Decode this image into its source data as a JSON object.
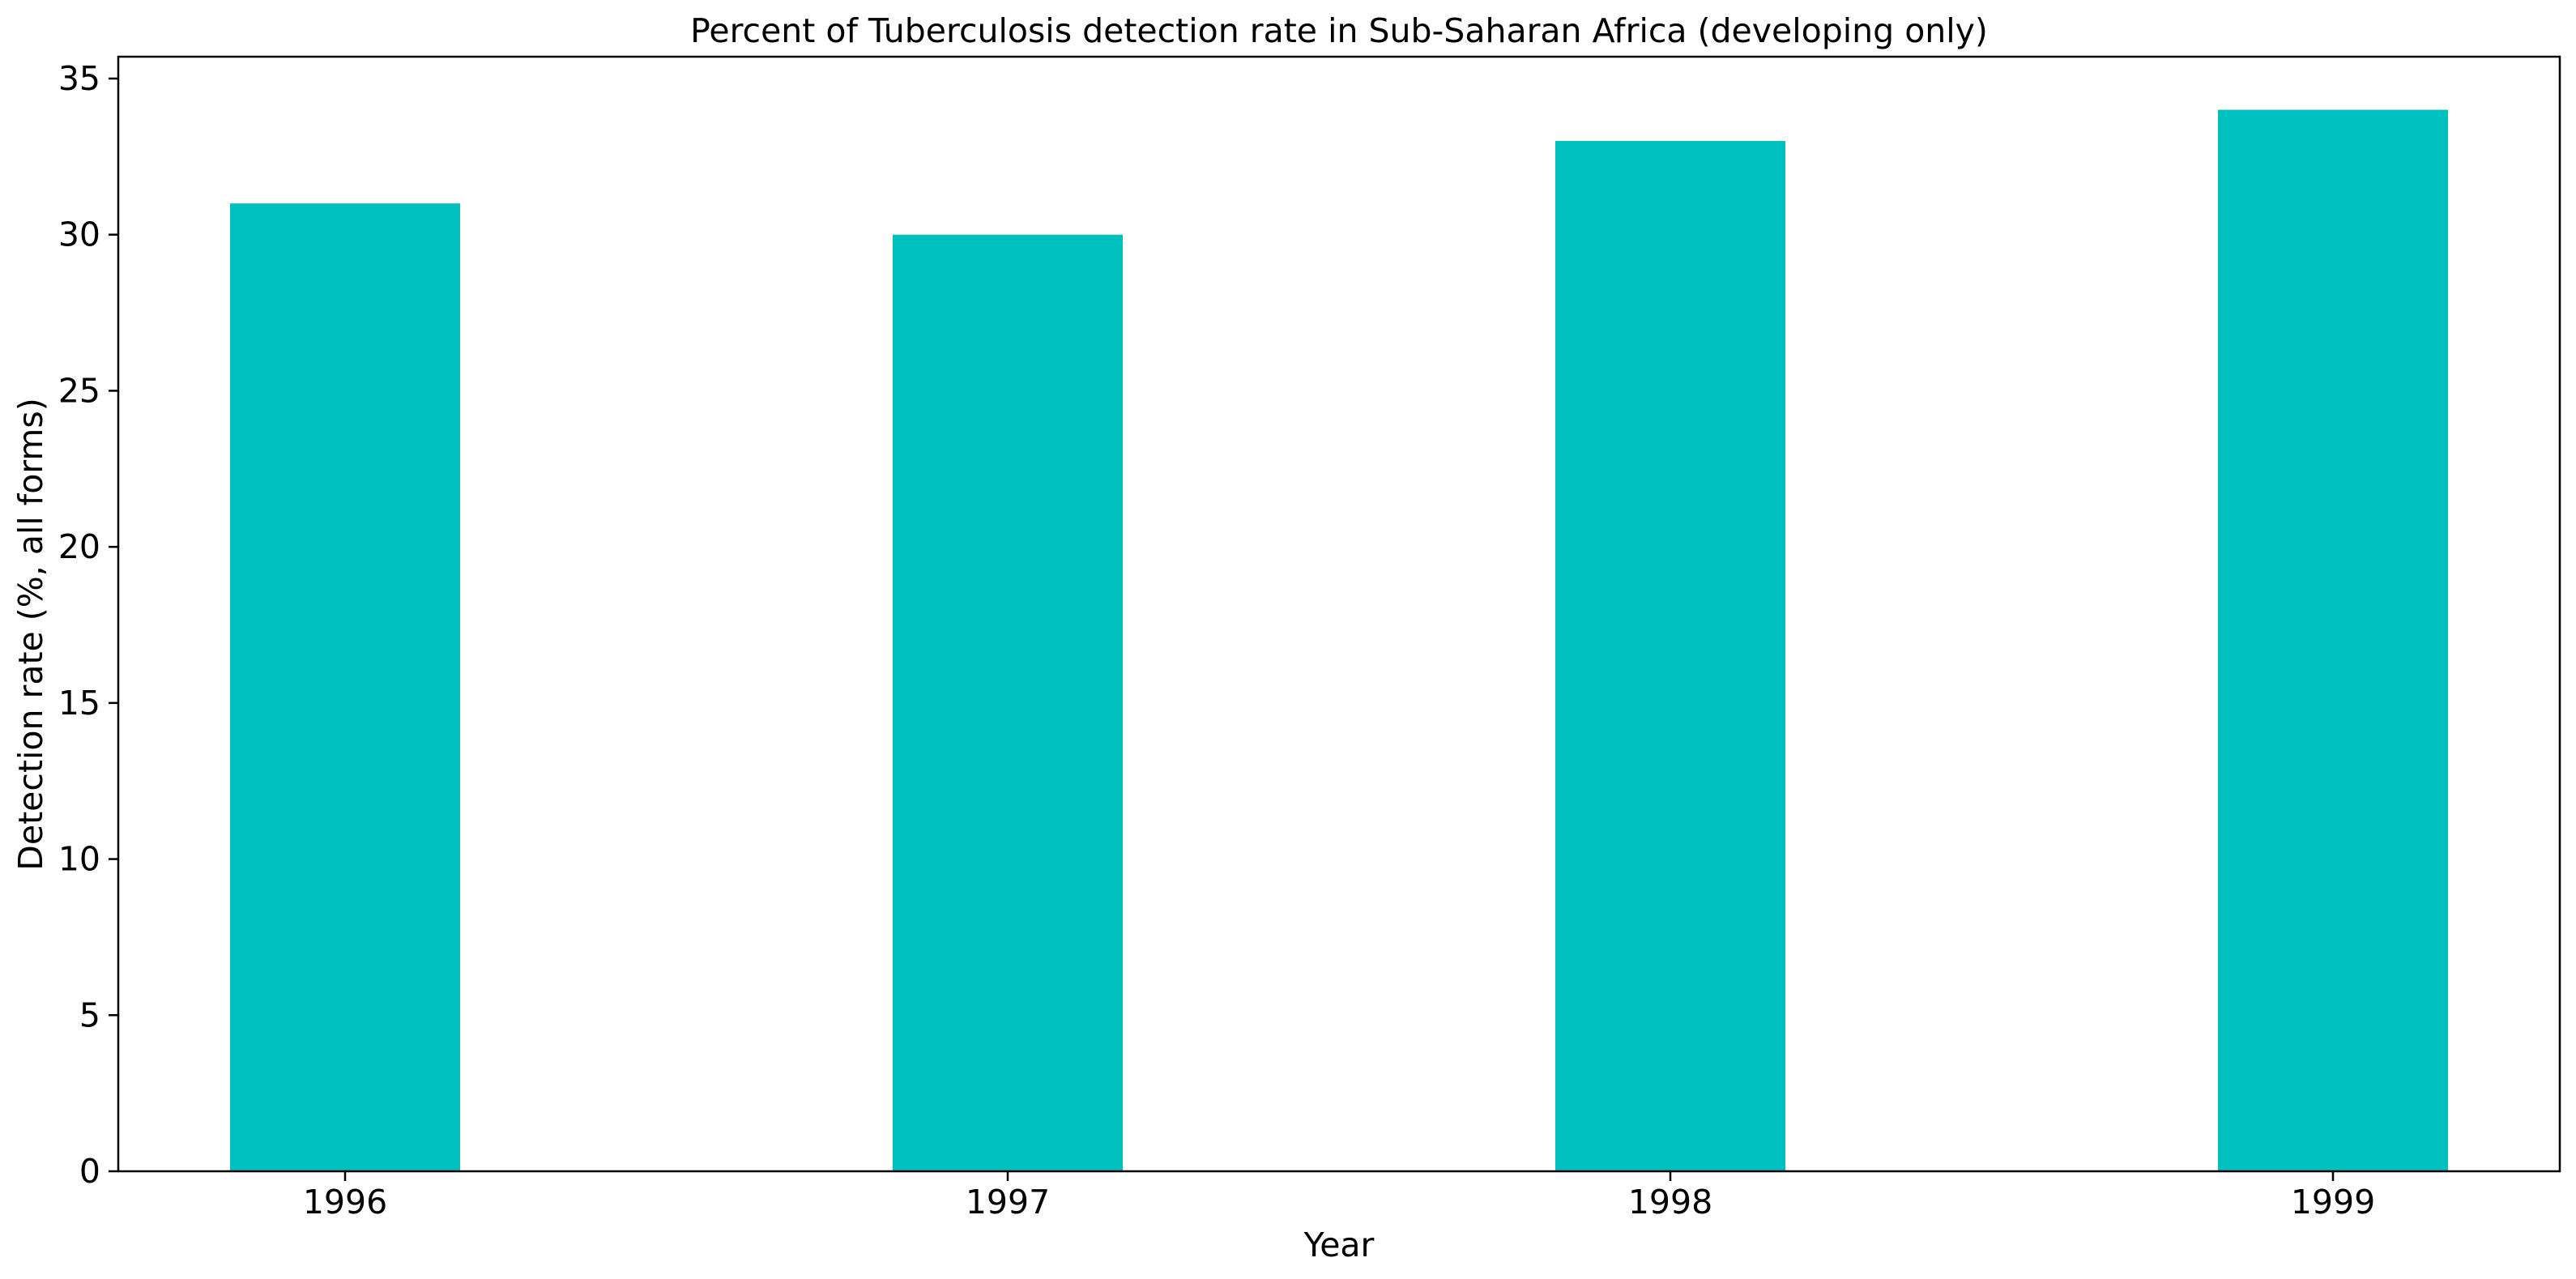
{
  "chart_data": {
    "type": "bar",
    "title": "Percent of Tuberculosis detection rate in Sub-Saharan Africa (developing only)",
    "xlabel": "Year",
    "ylabel": "Detection rate (%, all forms)",
    "categories": [
      "1996",
      "1997",
      "1998",
      "1999"
    ],
    "values": [
      31,
      30,
      33,
      34
    ],
    "ylim": [
      0,
      35.7
    ],
    "yticks": [
      0,
      5,
      10,
      15,
      20,
      25,
      30,
      35
    ],
    "bar_color": "#00bfbf",
    "grid": false,
    "legend": "none"
  }
}
